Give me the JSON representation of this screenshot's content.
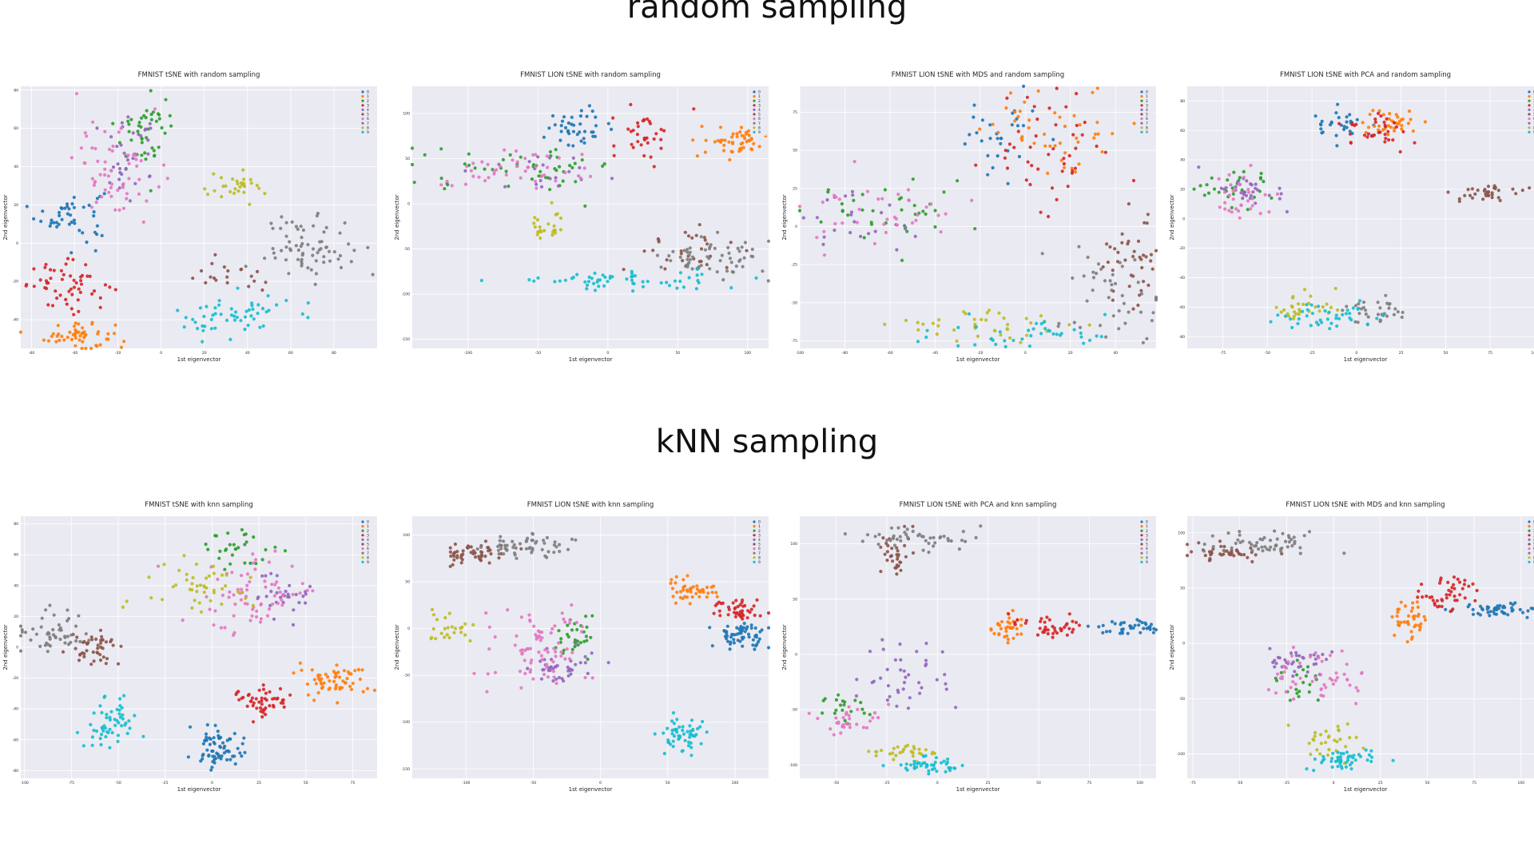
{
  "sections": {
    "random": "random sampling",
    "knn": "kNN sampling"
  },
  "legend_labels": [
    "0",
    "1",
    "2",
    "3",
    "4",
    "5",
    "6",
    "7",
    "8",
    "9"
  ],
  "colors": [
    "#1f77b4",
    "#ff7f0e",
    "#2ca02c",
    "#d62728",
    "#9467bd",
    "#8c564b",
    "#e377c2",
    "#7f7f7f",
    "#bcbd22",
    "#17becf"
  ],
  "style": {
    "plot_bg": "#eaeaf2",
    "grid": "#ffffff",
    "legend_placement": "top-right",
    "grid_on": true
  },
  "chart_data": [
    {
      "type": "scatter",
      "title": "FMNIST tSNE with random sampling",
      "xlabel": "1st eigenvector",
      "ylabel": "2nd eigenvector",
      "xlim": [
        -65,
        100
      ],
      "ylim": [
        -55,
        82
      ],
      "xticks": [
        -60,
        -40,
        -20,
        0,
        20,
        40,
        60,
        80
      ],
      "yticks": [
        -40,
        -20,
        0,
        20,
        40,
        60,
        80
      ],
      "clusters": [
        {
          "label": "0",
          "cx": -42,
          "cy": 15,
          "sx": 8,
          "sy": 7,
          "n": 45
        },
        {
          "label": "1",
          "cx": -38,
          "cy": -48,
          "sx": 8,
          "sy": 4,
          "n": 55
        },
        {
          "label": "2",
          "cx": -8,
          "cy": 58,
          "sx": 7,
          "sy": 10,
          "n": 45
        },
        {
          "label": "3",
          "cx": -42,
          "cy": -22,
          "sx": 10,
          "sy": 6,
          "n": 55
        },
        {
          "label": "4",
          "cx": -15,
          "cy": 45,
          "sx": 8,
          "sy": 10,
          "n": 35
        },
        {
          "label": "5",
          "cx": 30,
          "cy": -18,
          "sx": 9,
          "sy": 4,
          "n": 20
        },
        {
          "label": "6",
          "cx": -20,
          "cy": 40,
          "sx": 10,
          "sy": 14,
          "n": 60
        },
        {
          "label": "7",
          "cx": 68,
          "cy": -2,
          "sx": 10,
          "sy": 8,
          "n": 70
        },
        {
          "label": "8",
          "cx": 35,
          "cy": 28,
          "sx": 9,
          "sy": 4,
          "n": 30
        },
        {
          "label": "9",
          "cx": 33,
          "cy": -38,
          "sx": 13,
          "sy": 6,
          "n": 55
        }
      ]
    },
    {
      "type": "scatter",
      "title": "FMNIST LION tSNE with random sampling",
      "xlabel": "1st eigenvector",
      "ylabel": "2nd eigenvector",
      "xlim": [
        -140,
        115
      ],
      "ylim": [
        -160,
        130
      ],
      "xticks": [
        -100,
        -50,
        0,
        50,
        100
      ],
      "yticks": [
        -150,
        -100,
        -50,
        0,
        50,
        100
      ],
      "clusters": [
        {
          "label": "0",
          "cx": -20,
          "cy": 85,
          "sx": 12,
          "sy": 10,
          "n": 40
        },
        {
          "label": "1",
          "cx": 90,
          "cy": 68,
          "sx": 12,
          "sy": 8,
          "n": 50
        },
        {
          "label": "2",
          "cx": -60,
          "cy": 40,
          "sx": 35,
          "sy": 12,
          "n": 50
        },
        {
          "label": "3",
          "cx": 25,
          "cy": 80,
          "sx": 12,
          "sy": 15,
          "n": 35
        },
        {
          "label": "4",
          "cx": -40,
          "cy": 35,
          "sx": 20,
          "sy": 10,
          "n": 20
        },
        {
          "label": "5",
          "cx": 50,
          "cy": -50,
          "sx": 20,
          "sy": 15,
          "n": 30
        },
        {
          "label": "6",
          "cx": -75,
          "cy": 35,
          "sx": 30,
          "sy": 12,
          "n": 45
        },
        {
          "label": "7",
          "cx": 75,
          "cy": -60,
          "sx": 20,
          "sy": 12,
          "n": 60
        },
        {
          "label": "8",
          "cx": -45,
          "cy": -25,
          "sx": 8,
          "sy": 8,
          "n": 25
        },
        {
          "label": "9",
          "cx": 10,
          "cy": -85,
          "sx": 40,
          "sy": 5,
          "n": 60
        }
      ]
    },
    {
      "type": "scatter",
      "title": "FMNIST LION tSNE with MDS and random sampling",
      "xlabel": "1st eigenvector",
      "ylabel": "2nd eigenvector",
      "xlim": [
        -100,
        58
      ],
      "ylim": [
        -80,
        92
      ],
      "xticks": [
        -100,
        -80,
        -60,
        -40,
        -20,
        0,
        20,
        40
      ],
      "yticks": [
        -75,
        -50,
        -25,
        0,
        25,
        50,
        75
      ],
      "clusters": [
        {
          "label": "0",
          "cx": -10,
          "cy": 65,
          "sx": 10,
          "sy": 15,
          "n": 30
        },
        {
          "label": "1",
          "cx": 15,
          "cy": 60,
          "sx": 15,
          "sy": 15,
          "n": 45
        },
        {
          "label": "2",
          "cx": -60,
          "cy": 10,
          "sx": 20,
          "sy": 10,
          "n": 35
        },
        {
          "label": "3",
          "cx": 10,
          "cy": 50,
          "sx": 15,
          "sy": 20,
          "n": 45
        },
        {
          "label": "4",
          "cx": -70,
          "cy": 5,
          "sx": 15,
          "sy": 10,
          "n": 25
        },
        {
          "label": "5",
          "cx": 48,
          "cy": -20,
          "sx": 6,
          "sy": 20,
          "n": 40
        },
        {
          "label": "6",
          "cx": -65,
          "cy": 8,
          "sx": 20,
          "sy": 10,
          "n": 35
        },
        {
          "label": "7",
          "cx": 40,
          "cy": -45,
          "sx": 12,
          "sy": 20,
          "n": 45
        },
        {
          "label": "8",
          "cx": -15,
          "cy": -65,
          "sx": 25,
          "sy": 5,
          "n": 40
        },
        {
          "label": "9",
          "cx": 0,
          "cy": -70,
          "sx": 20,
          "sy": 5,
          "n": 40
        }
      ]
    },
    {
      "type": "scatter",
      "title": "FMNIST LION tSNE with PCA and random sampling",
      "xlabel": "1st eigenvector",
      "ylabel": "2nd eigenvector",
      "xlim": [
        -95,
        105
      ],
      "ylim": [
        -88,
        90
      ],
      "xticks": [
        -75,
        -50,
        -25,
        0,
        25,
        50,
        75,
        100
      ],
      "yticks": [
        -80,
        -60,
        -40,
        -20,
        0,
        20,
        40,
        60,
        80
      ],
      "clusters": [
        {
          "label": "0",
          "cx": -10,
          "cy": 65,
          "sx": 8,
          "sy": 6,
          "n": 30
        },
        {
          "label": "1",
          "cx": 20,
          "cy": 65,
          "sx": 8,
          "sy": 5,
          "n": 35
        },
        {
          "label": "2",
          "cx": -65,
          "cy": 18,
          "sx": 12,
          "sy": 8,
          "n": 30
        },
        {
          "label": "3",
          "cx": 10,
          "cy": 60,
          "sx": 10,
          "sy": 6,
          "n": 35
        },
        {
          "label": "4",
          "cx": -60,
          "cy": 20,
          "sx": 10,
          "sy": 7,
          "n": 30
        },
        {
          "label": "5",
          "cx": 75,
          "cy": 18,
          "sx": 10,
          "sy": 3,
          "n": 35
        },
        {
          "label": "6",
          "cx": -65,
          "cy": 15,
          "sx": 10,
          "sy": 8,
          "n": 30
        },
        {
          "label": "7",
          "cx": 10,
          "cy": -62,
          "sx": 12,
          "sy": 5,
          "n": 35
        },
        {
          "label": "8",
          "cx": -30,
          "cy": -60,
          "sx": 10,
          "sy": 6,
          "n": 30
        },
        {
          "label": "9",
          "cx": -15,
          "cy": -65,
          "sx": 15,
          "sy": 5,
          "n": 40
        }
      ]
    },
    {
      "type": "scatter",
      "title": "FMNIST tSNE with knn sampling",
      "xlabel": "1st eigenvector",
      "ylabel": "2nd eigenvector",
      "xlim": [
        -102,
        88
      ],
      "ylim": [
        -85,
        85
      ],
      "xticks": [
        -100,
        -75,
        -50,
        -25,
        0,
        25,
        50,
        75
      ],
      "yticks": [
        -80,
        -60,
        -40,
        -20,
        0,
        20,
        40,
        60,
        80
      ],
      "clusters": [
        {
          "label": "0",
          "cx": 3,
          "cy": -65,
          "sx": 7,
          "sy": 7,
          "n": 70
        },
        {
          "label": "1",
          "cx": 65,
          "cy": -22,
          "sx": 8,
          "sy": 5,
          "n": 60
        },
        {
          "label": "2",
          "cx": 12,
          "cy": 65,
          "sx": 8,
          "sy": 6,
          "n": 30
        },
        {
          "label": "3",
          "cx": 27,
          "cy": -35,
          "sx": 7,
          "sy": 5,
          "n": 50
        },
        {
          "label": "4",
          "cx": 40,
          "cy": 35,
          "sx": 8,
          "sy": 8,
          "n": 30
        },
        {
          "label": "5",
          "cx": -62,
          "cy": 0,
          "sx": 7,
          "sy": 6,
          "n": 45
        },
        {
          "label": "6",
          "cx": 18,
          "cy": 35,
          "sx": 15,
          "sy": 12,
          "n": 70
        },
        {
          "label": "7",
          "cx": -85,
          "cy": 10,
          "sx": 10,
          "sy": 7,
          "n": 50
        },
        {
          "label": "8",
          "cx": -5,
          "cy": 40,
          "sx": 15,
          "sy": 8,
          "n": 45
        },
        {
          "label": "9",
          "cx": -55,
          "cy": -50,
          "sx": 6,
          "sy": 9,
          "n": 55
        }
      ]
    },
    {
      "type": "scatter",
      "title": "FMNIST LION tSNE with knn sampling",
      "xlabel": "1st eigenvector",
      "ylabel": "2nd eigenvector",
      "xlim": [
        -140,
        125
      ],
      "ylim": [
        -160,
        120
      ],
      "xticks": [
        -100,
        -50,
        0,
        50,
        100
      ],
      "yticks": [
        -150,
        -100,
        -50,
        0,
        50,
        100
      ],
      "clusters": [
        {
          "label": "0",
          "cx": 105,
          "cy": -8,
          "sx": 10,
          "sy": 8,
          "n": 60
        },
        {
          "label": "1",
          "cx": 70,
          "cy": 42,
          "sx": 8,
          "sy": 8,
          "n": 45
        },
        {
          "label": "2",
          "cx": -20,
          "cy": -10,
          "sx": 10,
          "sy": 12,
          "n": 30
        },
        {
          "label": "3",
          "cx": 100,
          "cy": 20,
          "sx": 8,
          "sy": 6,
          "n": 45
        },
        {
          "label": "4",
          "cx": -30,
          "cy": -40,
          "sx": 12,
          "sy": 10,
          "n": 40
        },
        {
          "label": "5",
          "cx": -95,
          "cy": 80,
          "sx": 14,
          "sy": 6,
          "n": 55
        },
        {
          "label": "6",
          "cx": -45,
          "cy": -25,
          "sx": 20,
          "sy": 20,
          "n": 80
        },
        {
          "label": "7",
          "cx": -55,
          "cy": 88,
          "sx": 15,
          "sy": 7,
          "n": 55
        },
        {
          "label": "8",
          "cx": -110,
          "cy": 0,
          "sx": 10,
          "sy": 10,
          "n": 25
        },
        {
          "label": "9",
          "cx": 60,
          "cy": -115,
          "sx": 8,
          "sy": 10,
          "n": 55
        }
      ]
    },
    {
      "type": "scatter",
      "title": "FMNIST LION tSNE with PCA and knn sampling",
      "xlabel": "1st eigenvector",
      "ylabel": "2nd eigenvector",
      "xlim": [
        -68,
        108
      ],
      "ylim": [
        -112,
        125
      ],
      "xticks": [
        -50,
        -25,
        0,
        25,
        50,
        75,
        100
      ],
      "yticks": [
        -100,
        -50,
        0,
        50,
        100
      ],
      "clusters": [
        {
          "label": "0",
          "cx": 97,
          "cy": 25,
          "sx": 8,
          "sy": 4,
          "n": 40
        },
        {
          "label": "1",
          "cx": 35,
          "cy": 25,
          "sx": 5,
          "sy": 8,
          "n": 35
        },
        {
          "label": "2",
          "cx": -45,
          "cy": -50,
          "sx": 8,
          "sy": 8,
          "n": 20
        },
        {
          "label": "3",
          "cx": 55,
          "cy": 25,
          "sx": 10,
          "sy": 5,
          "n": 40
        },
        {
          "label": "4",
          "cx": -15,
          "cy": -20,
          "sx": 12,
          "sy": 15,
          "n": 40
        },
        {
          "label": "5",
          "cx": -20,
          "cy": 90,
          "sx": 5,
          "sy": 10,
          "n": 35
        },
        {
          "label": "6",
          "cx": -45,
          "cy": -60,
          "sx": 8,
          "sy": 8,
          "n": 30
        },
        {
          "label": "7",
          "cx": -10,
          "cy": 105,
          "sx": 15,
          "sy": 5,
          "n": 45
        },
        {
          "label": "8",
          "cx": -15,
          "cy": -88,
          "sx": 8,
          "sy": 3,
          "n": 30
        },
        {
          "label": "9",
          "cx": -5,
          "cy": -100,
          "sx": 8,
          "sy": 3,
          "n": 45
        }
      ]
    },
    {
      "type": "scatter",
      "title": "FMNIST LION tSNE with MDS and knn sampling",
      "xlabel": "1st eigenvector",
      "ylabel": "2nd eigenvector",
      "xlim": [
        -78,
        112
      ],
      "ylim": [
        -122,
        115
      ],
      "xticks": [
        -75,
        -50,
        -25,
        0,
        25,
        50,
        75,
        100
      ],
      "yticks": [
        -100,
        -50,
        0,
        50,
        100
      ],
      "clusters": [
        {
          "label": "0",
          "cx": 90,
          "cy": 30,
          "sx": 12,
          "sy": 3,
          "n": 50
        },
        {
          "label": "1",
          "cx": 40,
          "cy": 20,
          "sx": 5,
          "sy": 10,
          "n": 40
        },
        {
          "label": "2",
          "cx": -20,
          "cy": -35,
          "sx": 8,
          "sy": 10,
          "n": 20
        },
        {
          "label": "3",
          "cx": 62,
          "cy": 45,
          "sx": 8,
          "sy": 10,
          "n": 45
        },
        {
          "label": "4",
          "cx": -18,
          "cy": -15,
          "sx": 10,
          "sy": 6,
          "n": 35
        },
        {
          "label": "5",
          "cx": -58,
          "cy": 82,
          "sx": 10,
          "sy": 4,
          "n": 45
        },
        {
          "label": "6",
          "cx": -10,
          "cy": -30,
          "sx": 12,
          "sy": 12,
          "n": 50
        },
        {
          "label": "7",
          "cx": -35,
          "cy": 90,
          "sx": 15,
          "sy": 5,
          "n": 55
        },
        {
          "label": "8",
          "cx": -5,
          "cy": -85,
          "sx": 10,
          "sy": 8,
          "n": 30
        },
        {
          "label": "9",
          "cx": 5,
          "cy": -105,
          "sx": 10,
          "sy": 5,
          "n": 50
        }
      ]
    }
  ]
}
